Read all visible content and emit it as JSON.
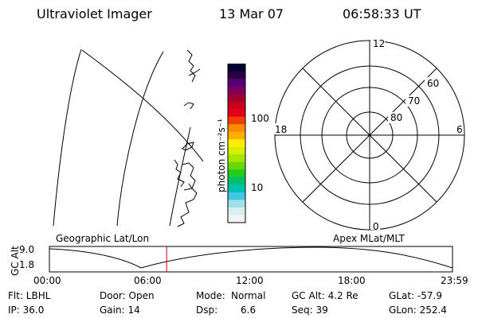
{
  "header": {
    "title": "Ultraviolet Imager",
    "date": "13 Mar 07",
    "time": "06:58:33 UT"
  },
  "colorbar": {
    "label": "photon cm⁻²s⁻¹",
    "ticks": [
      "100",
      "10"
    ],
    "colors": [
      "#000033",
      "#2a0044",
      "#550077",
      "#7a0060",
      "#a00030",
      "#c8001c",
      "#e00018",
      "#f04000",
      "#ff8c00",
      "#ffb000",
      "#ffee00",
      "#d4f000",
      "#a8e600",
      "#6cd600",
      "#20cc20",
      "#00c070",
      "#00c0b0",
      "#40c8e0",
      "#a0e0e8",
      "#d8eef0",
      "#f0f4f4"
    ]
  },
  "polar_plot": {
    "labels": {
      "top": "12",
      "bottom": "0",
      "left": "18",
      "right": "6"
    },
    "rings": [
      "80",
      "70",
      "60"
    ]
  },
  "timeline": {
    "left_title": "Geographic Lat/Lon",
    "right_title": "Apex MLat/MLT",
    "y_axis_label": "GC Alt",
    "y_ticks": [
      "9.0",
      "1.8"
    ],
    "x_ticks": [
      "00:00",
      "06:00",
      "12:00",
      "18:00",
      "23:59"
    ],
    "current_time_hours": 6.98,
    "cursor_color": "#cc0000"
  },
  "info": {
    "col1": [
      "Flt: LBHL",
      "IP: 36.0"
    ],
    "col2": [
      "Door: Open",
      "Gain: 14"
    ],
    "col3a": [
      "Mode:",
      "Dsp:"
    ],
    "col3b": [
      "Normal",
      "6.6"
    ],
    "col4": [
      "GC Alt: 4.2 Re",
      "Seq: 39"
    ],
    "col5": [
      "GLat: -57.9",
      "GLon: 252.4"
    ]
  }
}
